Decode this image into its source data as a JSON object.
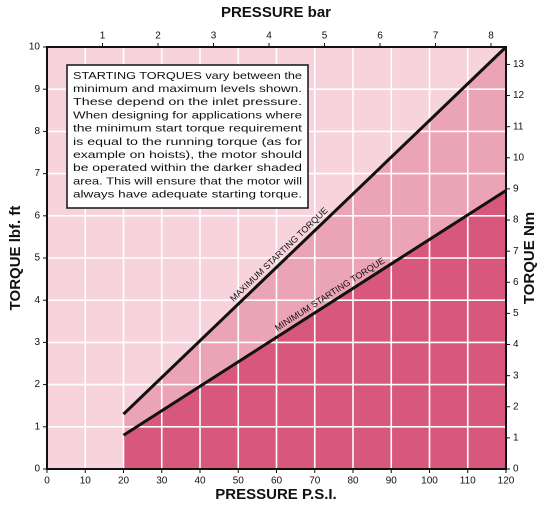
{
  "chart_data": {
    "type": "line",
    "title": "PRESSURE bar",
    "xlabel": "PRESSURE P.S.I.",
    "ylabel": "TORQUE lbf. ft",
    "y2label": "TORQUE Nm",
    "annotation": [
      "STARTING TORQUES vary between the",
      "minimum and maximum levels shown.",
      "These depend on the inlet pressure.",
      "When designing for applications where",
      "the minimum start torque requirement",
      "is equal to the running torque (as for",
      "example on hoists), the motor should",
      "be operated within the darker shaded",
      "area. This will ensure that the motor will",
      "always have adequate starting torque."
    ],
    "series": [
      {
        "name": "MAXIMUM STARTING TORQUE",
        "color": "#111111",
        "x": [
          20,
          120
        ],
        "values": [
          1.3,
          10
        ]
      },
      {
        "name": "MINIMUM STARTING TORQUE",
        "color": "#111111",
        "x": [
          20,
          120
        ],
        "values": [
          0.8,
          6.6
        ]
      }
    ],
    "xlim": [
      0,
      120
    ],
    "xticks": [
      0,
      10,
      20,
      30,
      40,
      50,
      60,
      70,
      80,
      90,
      100,
      110,
      120
    ],
    "x2lim": [
      0,
      8.27
    ],
    "x2ticks": [
      1,
      2,
      3,
      4,
      5,
      6,
      7,
      8
    ],
    "ylim": [
      0,
      10
    ],
    "yticks": [
      0,
      1,
      2,
      3,
      4,
      5,
      6,
      7,
      8,
      9,
      10
    ],
    "y2lim": [
      0,
      13.56
    ],
    "y2ticks": [
      0,
      1,
      2,
      3,
      4,
      5,
      6,
      7,
      8,
      9,
      10,
      11,
      12,
      13
    ],
    "grid": true,
    "colors": {
      "background": "#f7d4dd",
      "between": "#eba3b6",
      "below": "#d8587b",
      "grid": "#ffffff"
    }
  }
}
